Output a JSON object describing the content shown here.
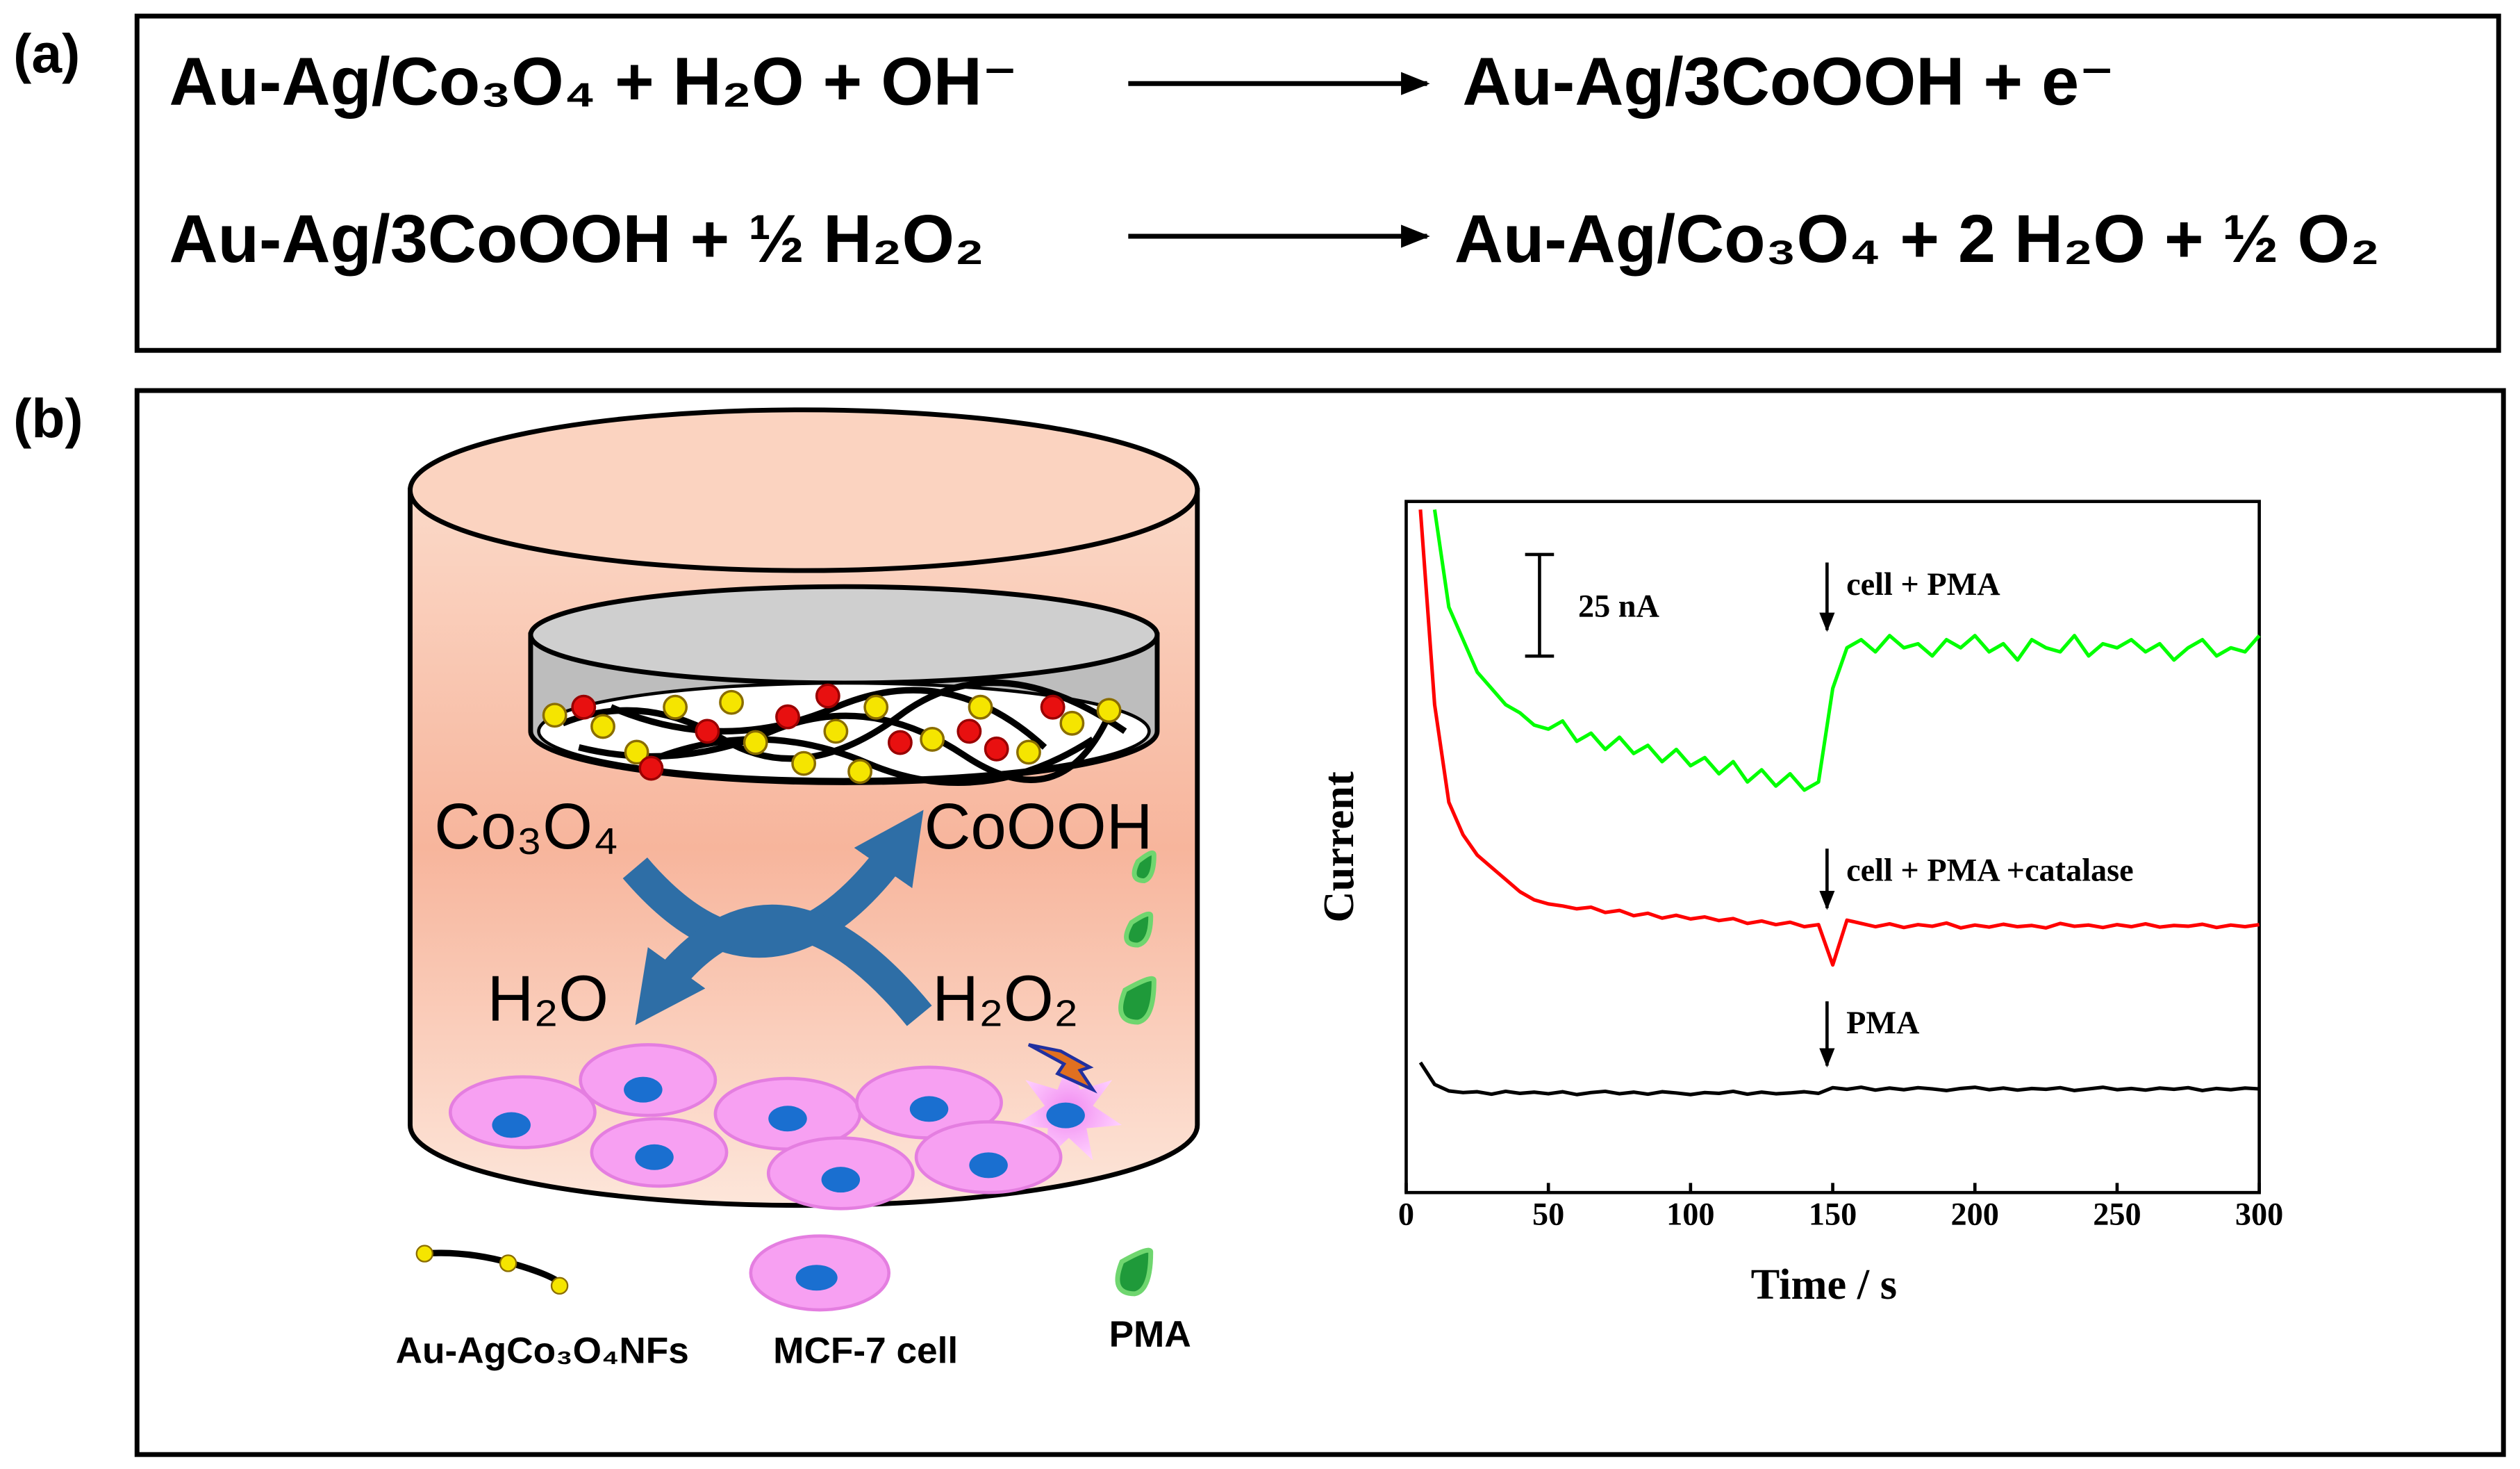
{
  "panel_a": {
    "label": "(a)",
    "equations": [
      {
        "left": "Au-Ag/Co₃O₄ + H₂O + OH⁻",
        "right": "Au-Ag/3CoOOH + e⁻"
      },
      {
        "left": "Au-Ag/3CoOOH + ½ H₂O₂",
        "right": "Au-Ag/Co₃O₄ + 2 H₂O + ½ O₂"
      }
    ]
  },
  "panel_b": {
    "label": "(b)",
    "diagram_labels": [
      "Co₃O₄",
      "CoOOH",
      "H₂O",
      "H₂O₂"
    ],
    "legend": [
      "Au-AgCo₃O₄NFs",
      "MCF-7 cell",
      "PMA"
    ]
  },
  "chart_data": {
    "type": "line",
    "xlabel": "Time / s",
    "ylabel": "Current",
    "x": [
      5,
      10,
      15,
      20,
      25,
      30,
      35,
      40,
      45,
      50,
      55,
      60,
      65,
      70,
      75,
      80,
      85,
      90,
      95,
      100,
      105,
      110,
      115,
      120,
      125,
      130,
      135,
      140,
      145,
      150,
      155,
      160,
      165,
      170,
      175,
      180,
      185,
      190,
      195,
      200,
      205,
      210,
      215,
      220,
      225,
      230,
      235,
      240,
      245,
      250,
      255,
      260,
      265,
      270,
      275,
      280,
      285,
      290,
      295,
      300
    ],
    "series": [
      {
        "color": "#000000",
        "values": [
          32,
          26.6,
          25,
          24.6,
          24.8,
          24.2,
          24.9,
          24.4,
          24.7,
          24.3,
          24.8,
          24.1,
          24.6,
          24.9,
          24.3,
          24.7,
          24.2,
          24.8,
          24.5,
          24.1,
          24.6,
          24.4,
          24.9,
          24.2,
          24.7,
          24.3,
          24.5,
          24.8,
          24.4,
          25.8,
          25.4,
          25.9,
          25.2,
          25.7,
          25.3,
          25.8,
          25.5,
          25.1,
          25.6,
          25.9,
          25.3,
          25.7,
          25.2,
          25.6,
          25.4,
          25.8,
          25.1,
          25.5,
          25.9,
          25.3,
          25.6,
          25.2,
          25.7,
          25.4,
          25.8,
          25.1,
          25.6,
          25.3,
          25.7,
          25.5
        ]
      },
      {
        "color": "#ff0000",
        "values": [
          168,
          120,
          96,
          88,
          83,
          80,
          77,
          74,
          72,
          71,
          70.5,
          69.8,
          70.2,
          68.9,
          69.4,
          68.1,
          68.7,
          67.5,
          68.2,
          67.3,
          67.8,
          66.9,
          67.4,
          66.2,
          66.8,
          65.9,
          66.5,
          65.4,
          65.9,
          56,
          67,
          66.2,
          65.4,
          66.1,
          65.2,
          65.9,
          65.5,
          66.3,
          65.1,
          65.8,
          65.3,
          66,
          65.4,
          65.7,
          65.1,
          66.2,
          65.5,
          65.8,
          65.2,
          65.9,
          65.4,
          66.1,
          65.3,
          65.7,
          65.5,
          66,
          65.2,
          65.8,
          65.4,
          65.9
        ]
      },
      {
        "color": "#00ff00",
        "values": [
          null,
          168,
          144,
          136,
          128,
          124,
          120,
          118,
          115,
          114,
          116,
          111,
          113,
          109,
          112,
          108,
          110,
          106,
          109,
          105,
          107,
          103,
          106,
          101,
          104,
          100,
          103,
          99,
          101,
          124,
          134,
          136,
          133,
          137,
          134,
          135,
          132,
          136,
          134,
          137,
          133,
          135,
          131,
          136,
          134,
          133,
          137,
          132,
          135,
          134,
          136,
          133,
          135,
          131,
          134,
          136,
          132,
          134,
          133,
          137
        ]
      }
    ],
    "xlim": [
      0,
      300
    ],
    "xticks": [
      0,
      50,
      100,
      150,
      200,
      250,
      300
    ],
    "ylim": [
      0,
      170
    ],
    "scale_bar": {
      "value": 25,
      "label": "25 nA"
    },
    "annotations": [
      {
        "text": "cell + PMA",
        "x": 148
      },
      {
        "text": "cell + PMA +catalase",
        "x": 148
      },
      {
        "text": "PMA",
        "x": 148
      }
    ]
  }
}
